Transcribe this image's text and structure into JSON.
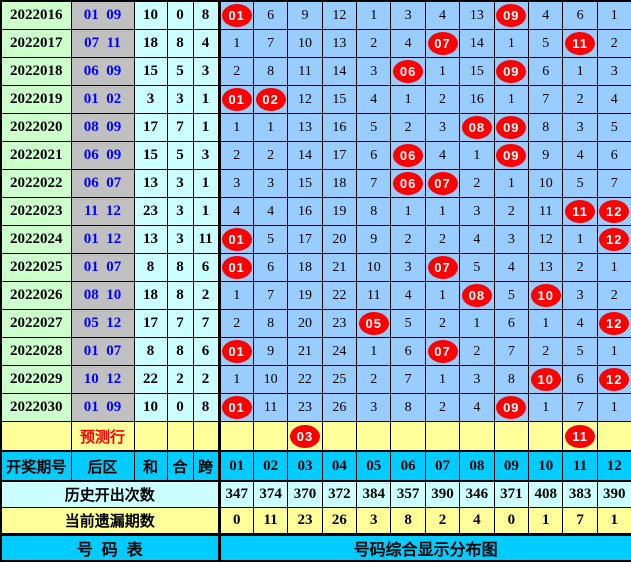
{
  "colors": {
    "period_bg": "#CCFFCC",
    "rear_bg": "#C0C0C0",
    "calc_bg": "#CCFFFF",
    "grid_bg": "#99CCFF",
    "row_yellow": "#FFFF99",
    "header_cyan": "#00CCFF",
    "stats_bg": "#CCFFFF",
    "hit_red": "#FF0000",
    "rear_text": "#0000FF",
    "prediction_text": "#FF0000"
  },
  "columns_header": {
    "period": "开奖期号",
    "rear": "后区",
    "sum": "和",
    "tail": "合",
    "span": "跨",
    "numbers": [
      "01",
      "02",
      "03",
      "04",
      "05",
      "06",
      "07",
      "08",
      "09",
      "10",
      "11",
      "12"
    ]
  },
  "rows": [
    {
      "period": "2022016",
      "rear": [
        "01",
        "09"
      ],
      "sum": 10,
      "tail": 0,
      "span": 8,
      "cells": [
        "01",
        6,
        9,
        12,
        1,
        3,
        4,
        13,
        "09",
        4,
        6,
        1
      ]
    },
    {
      "period": "2022017",
      "rear": [
        "07",
        "11"
      ],
      "sum": 18,
      "tail": 8,
      "span": 4,
      "cells": [
        1,
        7,
        10,
        13,
        2,
        4,
        "07",
        14,
        1,
        5,
        "11",
        2
      ]
    },
    {
      "period": "2022018",
      "rear": [
        "06",
        "09"
      ],
      "sum": 15,
      "tail": 5,
      "span": 3,
      "cells": [
        2,
        8,
        11,
        14,
        3,
        "06",
        1,
        15,
        "09",
        6,
        1,
        3
      ]
    },
    {
      "period": "2022019",
      "rear": [
        "01",
        "02"
      ],
      "sum": 3,
      "tail": 3,
      "span": 1,
      "cells": [
        "01",
        "02",
        12,
        15,
        4,
        1,
        2,
        16,
        1,
        7,
        2,
        4
      ]
    },
    {
      "period": "2022020",
      "rear": [
        "08",
        "09"
      ],
      "sum": 17,
      "tail": 7,
      "span": 1,
      "cells": [
        1,
        1,
        13,
        16,
        5,
        2,
        3,
        "08",
        "09",
        8,
        3,
        5
      ]
    },
    {
      "period": "2022021",
      "rear": [
        "06",
        "09"
      ],
      "sum": 15,
      "tail": 5,
      "span": 3,
      "cells": [
        2,
        2,
        14,
        17,
        6,
        "06",
        4,
        1,
        "09",
        9,
        4,
        6
      ]
    },
    {
      "period": "2022022",
      "rear": [
        "06",
        "07"
      ],
      "sum": 13,
      "tail": 3,
      "span": 1,
      "cells": [
        3,
        3,
        15,
        18,
        7,
        "06",
        "07",
        2,
        1,
        10,
        5,
        7
      ]
    },
    {
      "period": "2022023",
      "rear": [
        "11",
        "12"
      ],
      "sum": 23,
      "tail": 3,
      "span": 1,
      "cells": [
        4,
        4,
        16,
        19,
        8,
        1,
        1,
        3,
        2,
        11,
        "11",
        "12"
      ]
    },
    {
      "period": "2022024",
      "rear": [
        "01",
        "12"
      ],
      "sum": 13,
      "tail": 3,
      "span": 11,
      "cells": [
        "01",
        5,
        17,
        20,
        9,
        2,
        2,
        4,
        3,
        12,
        1,
        "12"
      ]
    },
    {
      "period": "2022025",
      "rear": [
        "01",
        "07"
      ],
      "sum": 8,
      "tail": 8,
      "span": 6,
      "cells": [
        "01",
        6,
        18,
        21,
        10,
        3,
        "07",
        5,
        4,
        13,
        2,
        1
      ]
    },
    {
      "period": "2022026",
      "rear": [
        "08",
        "10"
      ],
      "sum": 18,
      "tail": 8,
      "span": 2,
      "cells": [
        1,
        7,
        19,
        22,
        11,
        4,
        1,
        "08",
        5,
        "10",
        3,
        2
      ]
    },
    {
      "period": "2022027",
      "rear": [
        "05",
        "12"
      ],
      "sum": 17,
      "tail": 7,
      "span": 7,
      "cells": [
        2,
        8,
        20,
        23,
        "05",
        5,
        2,
        1,
        6,
        1,
        4,
        "12"
      ]
    },
    {
      "period": "2022028",
      "rear": [
        "01",
        "07"
      ],
      "sum": 8,
      "tail": 8,
      "span": 6,
      "cells": [
        "01",
        9,
        21,
        24,
        1,
        6,
        "07",
        2,
        7,
        2,
        5,
        1
      ]
    },
    {
      "period": "2022029",
      "rear": [
        "10",
        "12"
      ],
      "sum": 22,
      "tail": 2,
      "span": 2,
      "cells": [
        1,
        10,
        22,
        25,
        2,
        7,
        1,
        3,
        8,
        "10",
        6,
        "12"
      ]
    },
    {
      "period": "2022030",
      "rear": [
        "01",
        "09"
      ],
      "sum": 10,
      "tail": 0,
      "span": 8,
      "cells": [
        "01",
        11,
        23,
        26,
        3,
        8,
        2,
        4,
        "09",
        1,
        7,
        1
      ]
    }
  ],
  "prediction_row": {
    "label": "预测行",
    "cells": [
      "",
      "",
      "03",
      "",
      "",
      "",
      "",
      "",
      "",
      "",
      "11",
      ""
    ]
  },
  "stats": {
    "history_label": "历史开出次数",
    "history_counts": [
      347,
      374,
      370,
      372,
      384,
      357,
      390,
      346,
      371,
      408,
      383,
      390
    ],
    "miss_label": "当前遗漏期数",
    "current_miss": [
      0,
      11,
      23,
      26,
      3,
      8,
      2,
      4,
      0,
      1,
      7,
      1
    ]
  },
  "footer": {
    "left": "号  码  表",
    "right": "号码综合显示分布图"
  }
}
